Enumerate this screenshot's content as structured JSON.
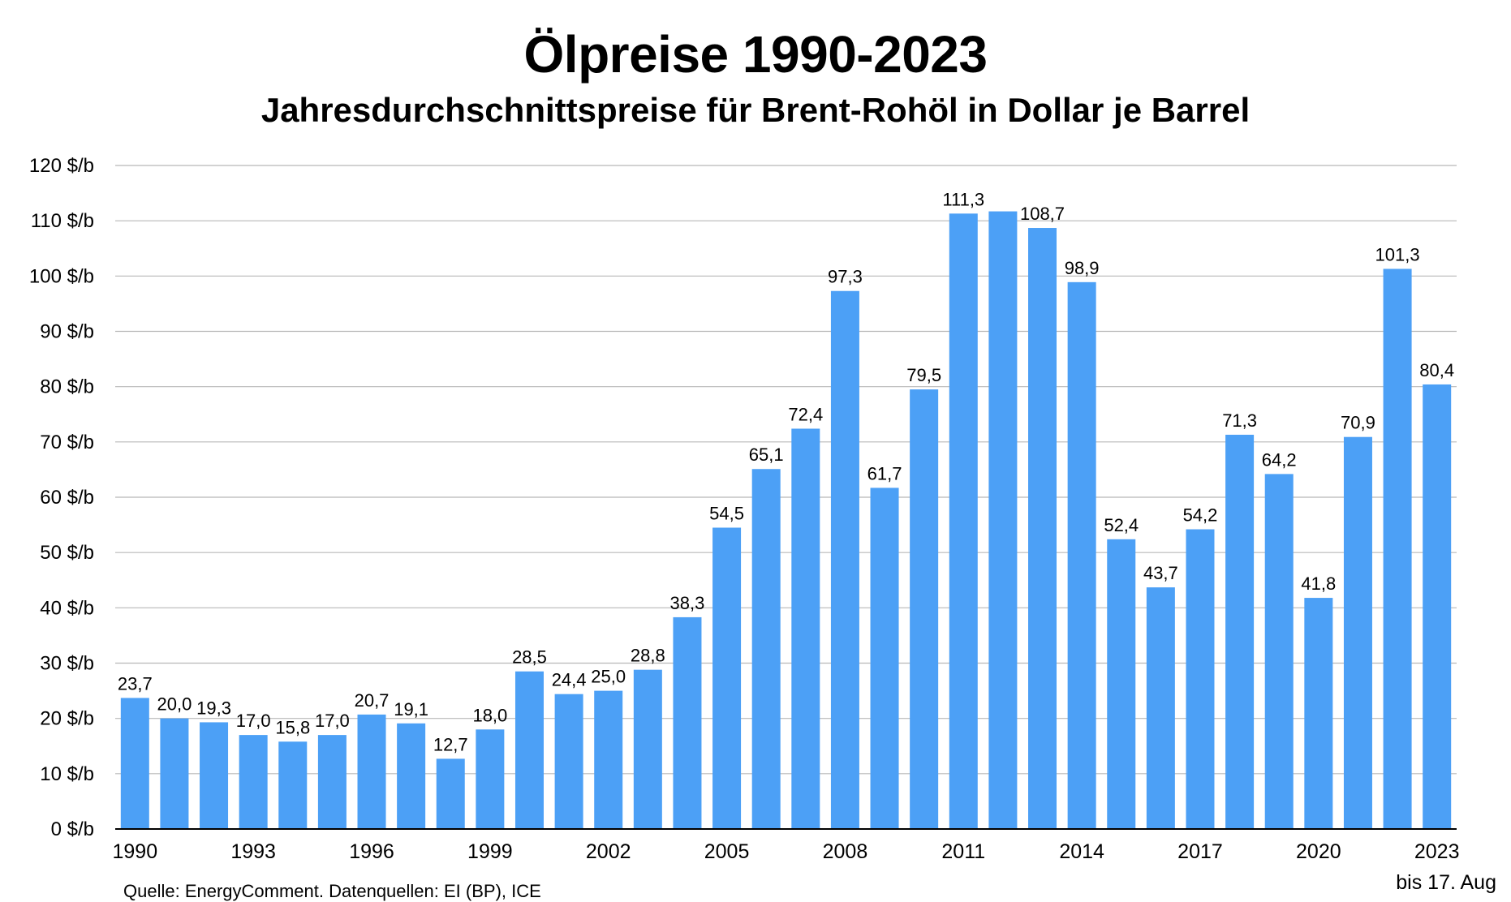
{
  "chart_data": {
    "type": "bar",
    "title": "Ölpreise 1990-2023",
    "subtitle": "Jahresdurchschnittspreise für Brent-Rohöl in Dollar je Barrel",
    "ylim": [
      0,
      120
    ],
    "yticks": [
      "0 $/b",
      "10 $/b",
      "20 $/b",
      "30 $/b",
      "40 $/b",
      "50 $/b",
      "60 $/b",
      "70 $/b",
      "80 $/b",
      "90 $/b",
      "100 $/b",
      "110 $/b",
      "120 $/b"
    ],
    "categories": [
      "1990",
      "1991",
      "1992",
      "1993",
      "1994",
      "1995",
      "1996",
      "1997",
      "1998",
      "1999",
      "2000",
      "2001",
      "2002",
      "2003",
      "2004",
      "2005",
      "2006",
      "2007",
      "2008",
      "2009",
      "2010",
      "2011",
      "2012",
      "2013",
      "2014",
      "2015",
      "2016",
      "2017",
      "2018",
      "2019",
      "2020",
      "2021",
      "2022",
      "2023"
    ],
    "xtick_labels": [
      "1990",
      "",
      "",
      "1993",
      "",
      "",
      "1996",
      "",
      "",
      "1999",
      "",
      "",
      "2002",
      "",
      "",
      "2005",
      "",
      "",
      "2008",
      "",
      "",
      "2011",
      "",
      "",
      "2014",
      "",
      "",
      "2017",
      "",
      "",
      "2020",
      "",
      "",
      "2023"
    ],
    "values": [
      23.7,
      20.0,
      19.3,
      17.0,
      15.8,
      17.0,
      20.7,
      19.1,
      12.7,
      18.0,
      28.5,
      24.4,
      25.0,
      28.8,
      38.3,
      54.5,
      65.1,
      72.4,
      97.3,
      61.7,
      79.5,
      111.3,
      111.7,
      108.7,
      98.9,
      52.4,
      43.7,
      54.2,
      71.3,
      64.2,
      41.8,
      70.9,
      101.3,
      80.4
    ],
    "data_labels": [
      "23,7",
      "20,0",
      "19,3",
      "17,0",
      "15,8",
      "17,0",
      "20,7",
      "19,1",
      "12,7",
      "18,0",
      "28,5",
      "24,4",
      "25,0",
      "28,8",
      "38,3",
      "54,5",
      "65,1",
      "72,4",
      "97,3",
      "61,7",
      "79,5",
      "111,3",
      "",
      "108,7",
      "98,9",
      "52,4",
      "43,7",
      "54,2",
      "71,3",
      "64,2",
      "41,8",
      "70,9",
      "101,3",
      "80,4"
    ],
    "bar_color": "#4ca0f6",
    "grid": true,
    "source": "Quelle: EnergyComment. Datenquellen: EI (BP), ICE",
    "note": "bis 17. Aug"
  }
}
